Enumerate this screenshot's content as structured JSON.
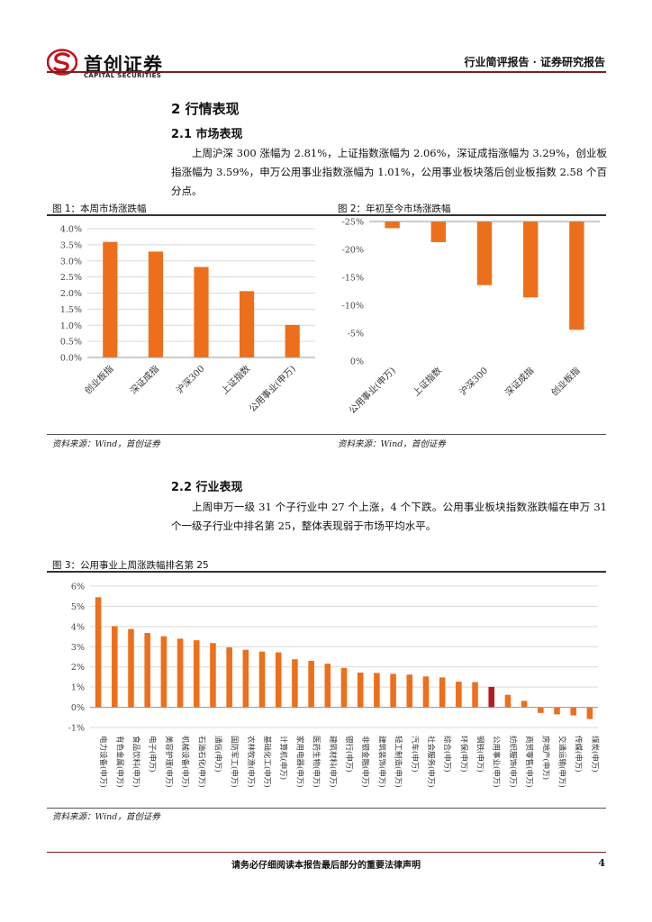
{
  "header": {
    "logo_cn": "首创证券",
    "logo_en": "CAPITAL SECURITIES",
    "right": "行业简评报告 · 证券研究报告"
  },
  "section": {
    "title": "2  行情表现",
    "sub1": "2.1  市场表现",
    "para1": "上周沪深 300 涨幅为 2.81%，上证指数涨幅为 2.06%，深证成指涨幅为 3.29%，创业板指涨幅为 3.59%，申万公用事业指数涨幅为 1.01%，公用事业板块落后创业板指数 2.58 个百分点。",
    "sub2": "2.2  行业表现",
    "para2": "上周申万一级 31 个子行业中 27 个上涨，4 个下跌。公用事业板块指数涨跌幅在申万 31 个一级子行业中排名第 25，整体表现弱于市场平均水平。"
  },
  "figures": {
    "fig1_title": "图 1：本周市场涨跌幅",
    "fig2_title": "图 2：年初至今市场涨跌幅",
    "fig3_title": "图 3：公用事业上周涨跌幅排名第 25",
    "source": "资料来源：Wind，首创证券"
  },
  "colors": {
    "bar": "#EE6F1B",
    "highlight": "#B01E1E",
    "brand": "#C0141C"
  },
  "chart_data": [
    {
      "type": "bar",
      "categories": [
        "创业板指",
        "深证成指",
        "沪深300",
        "上证指数",
        "公用事业(申万)"
      ],
      "values": [
        3.59,
        3.29,
        2.81,
        2.06,
        1.01
      ],
      "ylim": [
        0,
        4
      ],
      "yticks": [
        "0.0%",
        "0.5%",
        "1.0%",
        "1.5%",
        "2.0%",
        "2.5%",
        "3.0%",
        "3.5%",
        "4.0%"
      ],
      "grid": true
    },
    {
      "type": "bar",
      "categories": [
        "公用事业(申万)",
        "上证指数",
        "沪深300",
        "深证成指",
        "创业板指"
      ],
      "values": [
        -1.2,
        -3.7,
        -11.4,
        -13.6,
        -19.4
      ],
      "ylim": [
        -25,
        0
      ],
      "yticks": [
        "0%",
        "-5%",
        "-10%",
        "-15%",
        "-20%",
        "-25%"
      ],
      "grid": false
    },
    {
      "type": "bar",
      "categories": [
        "电力设备(申万)",
        "有色金属(申万)",
        "食品饮料(申万)",
        "电子(申万)",
        "美容护理(申万)",
        "机械设备(申万)",
        "石油石化(申万)",
        "通信(申万)",
        "国防军工(申万)",
        "农林牧渔(申万)",
        "基础化工(申万)",
        "计算机(申万)",
        "家用电器(申万)",
        "医药生物(申万)",
        "建筑材料(申万)",
        "银行(申万)",
        "非银金融(申万)",
        "建筑装饰(申万)",
        "轻工制造(申万)",
        "汽车(申万)",
        "社会服务(申万)",
        "综合(申万)",
        "环保(申万)",
        "钢铁(申万)",
        "公用事业(申万)",
        "纺织服饰(申万)",
        "商贸零售(申万)",
        "房地产(申万)",
        "交通运输(申万)",
        "传媒(申万)",
        "煤炭(申万)"
      ],
      "values": [
        5.45,
        4.02,
        3.88,
        3.68,
        3.52,
        3.4,
        3.32,
        3.18,
        2.97,
        2.85,
        2.76,
        2.72,
        2.38,
        2.3,
        2.16,
        1.95,
        1.72,
        1.7,
        1.66,
        1.62,
        1.53,
        1.48,
        1.27,
        1.25,
        1.01,
        0.62,
        0.32,
        -0.28,
        -0.35,
        -0.4,
        -0.58
      ],
      "ylim": [
        -1,
        6
      ],
      "yticks": [
        "-1%",
        "0%",
        "1%",
        "2%",
        "3%",
        "4%",
        "5%",
        "6%"
      ],
      "highlight_index": 24,
      "grid": true
    }
  ],
  "footer": {
    "text": "请务必仔细阅读本报告最后部分的重要法律声明",
    "page": "4"
  }
}
